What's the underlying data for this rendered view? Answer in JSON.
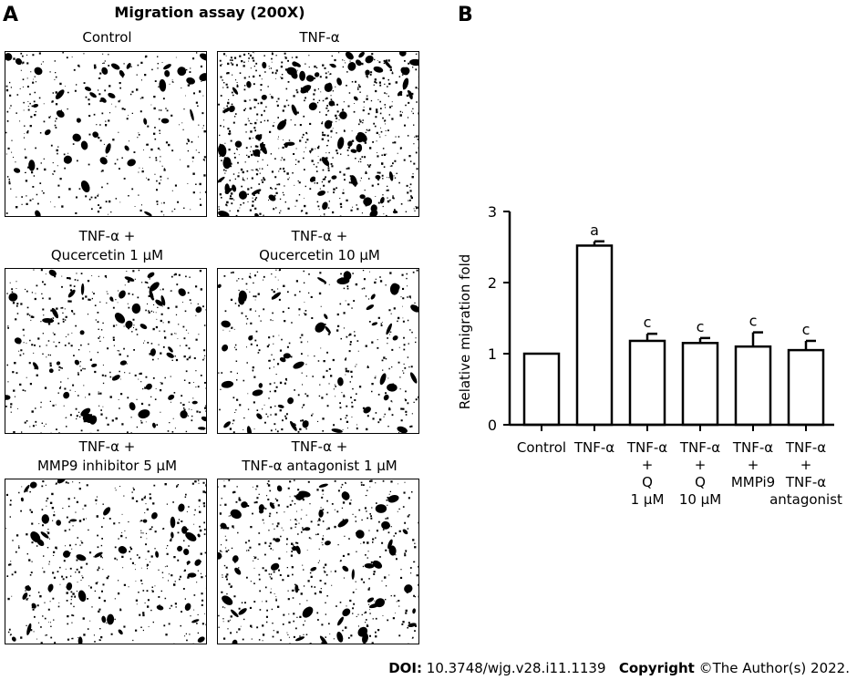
{
  "panelA": {
    "letter": "A",
    "title": "Migration assay (200X)",
    "images": [
      {
        "caption": [
          "Control"
        ],
        "density": 0.28
      },
      {
        "caption": [
          "TNF-α"
        ],
        "density": 0.55
      },
      {
        "caption": [
          "TNF-α +",
          "Qucercetin 1 μM"
        ],
        "density": 0.33
      },
      {
        "caption": [
          "TNF-α +",
          "Qucercetin 10 μM"
        ],
        "density": 0.3
      },
      {
        "caption": [
          "TNF-α +",
          "MMP9 inhibitor 5 μM"
        ],
        "density": 0.32
      },
      {
        "caption": [
          "TNF-α +",
          "TNF-α antagonist 1 μM"
        ],
        "density": 0.38
      }
    ]
  },
  "panelB": {
    "letter": "B"
  },
  "chart_data": {
    "type": "bar",
    "title": "",
    "xlabel": "",
    "ylabel": "Relative migration fold",
    "ylim": [
      0,
      3
    ],
    "yticks": [
      0,
      1,
      2,
      3
    ],
    "categories": [
      [
        "Control"
      ],
      [
        "TNF-α"
      ],
      [
        "TNF-α",
        "+",
        "Q",
        "1 μM"
      ],
      [
        "TNF-α",
        "+",
        "Q",
        "10 μM"
      ],
      [
        "TNF-α",
        "+",
        "MMPi9"
      ],
      [
        "TNF-α",
        "+",
        "TNF-α",
        "antagonist"
      ]
    ],
    "values": [
      1.0,
      2.52,
      1.18,
      1.15,
      1.1,
      1.05
    ],
    "errors": [
      0,
      0.06,
      0.1,
      0.07,
      0.2,
      0.13
    ],
    "annotations": [
      "",
      "a",
      "c",
      "c",
      "c",
      "c"
    ],
    "colors": {
      "bar_fill": "#ffffff",
      "bar_stroke": "#000000"
    }
  },
  "footer": {
    "doi_label": "DOI:",
    "doi_value": "10.3748/wjg.v28.i11.1139",
    "copyright_label": "Copyright",
    "copyright_value": "©The Author(s) 2022."
  }
}
